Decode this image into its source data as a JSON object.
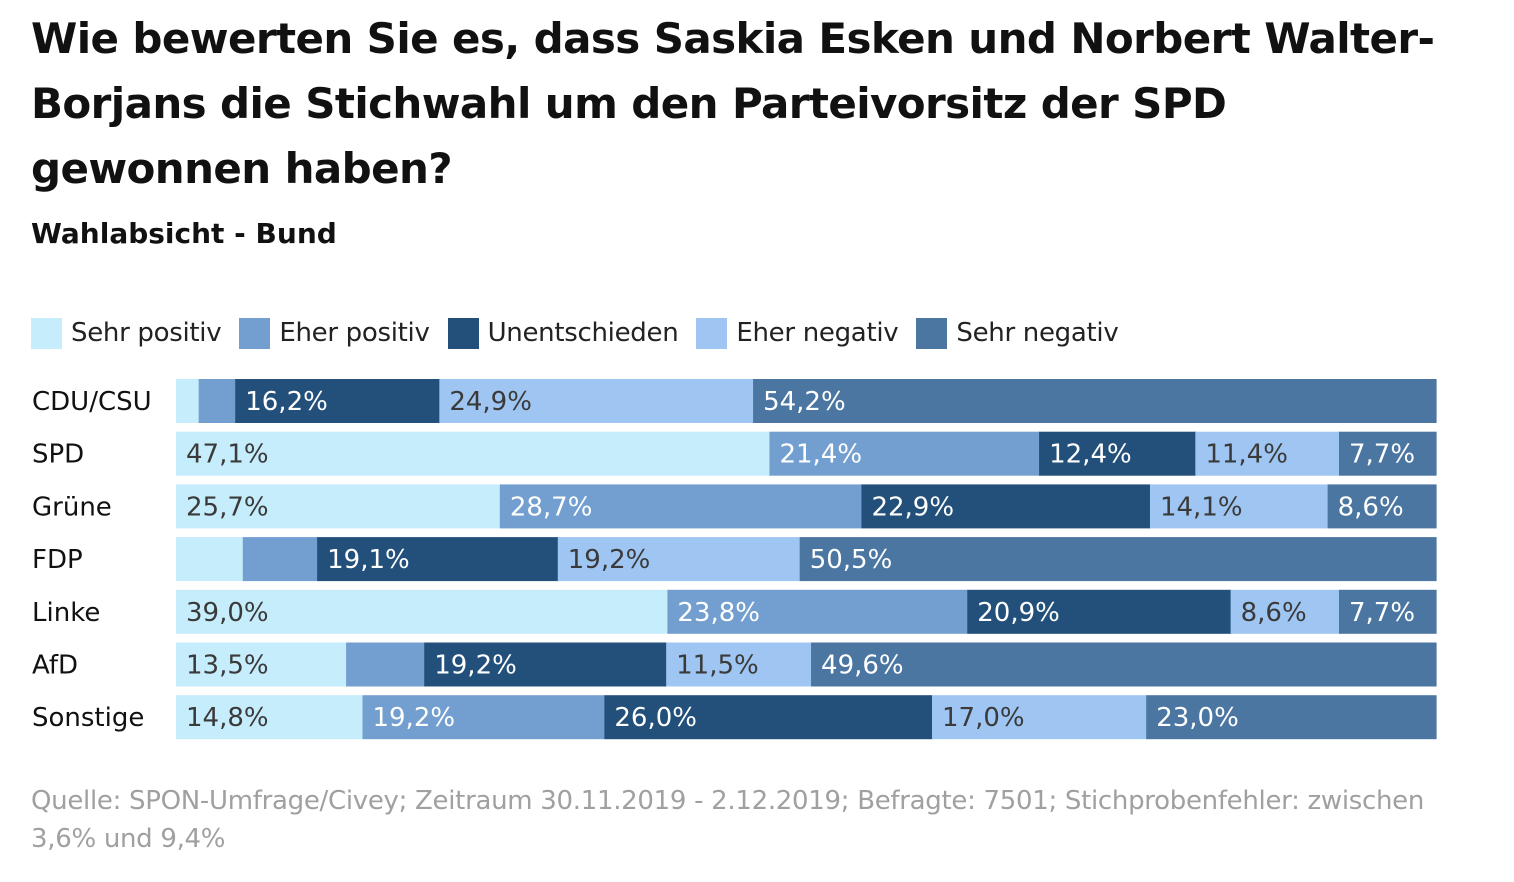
{
  "chart_data": {
    "type": "bar",
    "orientation": "horizontal",
    "stacked": true,
    "normalized": true,
    "title": "Wie bewerten Sie es, dass Saskia Esken und Norbert Walter-Borjans die Stichwahl um den Parteivorsitz der SPD gewonnen haben?",
    "subtitle": "Wahlabsicht - Bund",
    "source": "Quelle: SPON-Umfrage/Civey; Zeitraum 30.11.2019 - 2.12.2019; Befragte: 7501; Stichprobenfehler: zwischen 3,6% und 9,4%",
    "legend_position": "top",
    "categories": [
      "CDU/CSU",
      "SPD",
      "Grüne",
      "FDP",
      "Linke",
      "AfD",
      "Sonstige"
    ],
    "series": [
      {
        "name": "Sehr positiv",
        "color": "#c6edfc",
        "text_color": "#3a3a3a",
        "values": [
          1.8,
          47.1,
          25.7,
          5.3,
          39.0,
          13.5,
          14.8
        ],
        "labels": [
          "",
          "47,1%",
          "25,7%",
          "",
          "39,0%",
          "13,5%",
          "14,8%"
        ]
      },
      {
        "name": "Eher positiv",
        "color": "#729fcf",
        "text_color": "#ffffff",
        "values": [
          2.9,
          21.4,
          28.7,
          5.9,
          23.8,
          6.2,
          19.2
        ],
        "labels": [
          "",
          "21,4%",
          "28,7%",
          "",
          "23,8%",
          "",
          "19,2%"
        ]
      },
      {
        "name": "Unentschieden",
        "color": "#22507a",
        "text_color": "#ffffff",
        "values": [
          16.2,
          12.4,
          22.9,
          19.1,
          20.9,
          19.2,
          26.0
        ],
        "labels": [
          "16,2%",
          "12,4%",
          "22,9%",
          "19,1%",
          "20,9%",
          "19,2%",
          "26,0%"
        ]
      },
      {
        "name": "Eher negativ",
        "color": "#9fc5f2",
        "text_color": "#3a3a3a",
        "values": [
          24.9,
          11.4,
          14.1,
          19.2,
          8.6,
          11.5,
          17.0
        ],
        "labels": [
          "24,9%",
          "11,4%",
          "14,1%",
          "19,2%",
          "8,6%",
          "11,5%",
          "17,0%"
        ]
      },
      {
        "name": "Sehr negativ",
        "color": "#4a76a1",
        "text_color": "#ffffff",
        "values": [
          54.2,
          7.7,
          8.6,
          50.5,
          7.7,
          49.6,
          23.0
        ],
        "labels": [
          "54,2%",
          "7,7%",
          "8,6%",
          "50,5%",
          "7,7%",
          "49,6%",
          "23,0%"
        ]
      }
    ],
    "xlim": [
      0,
      100
    ],
    "grid": false
  }
}
